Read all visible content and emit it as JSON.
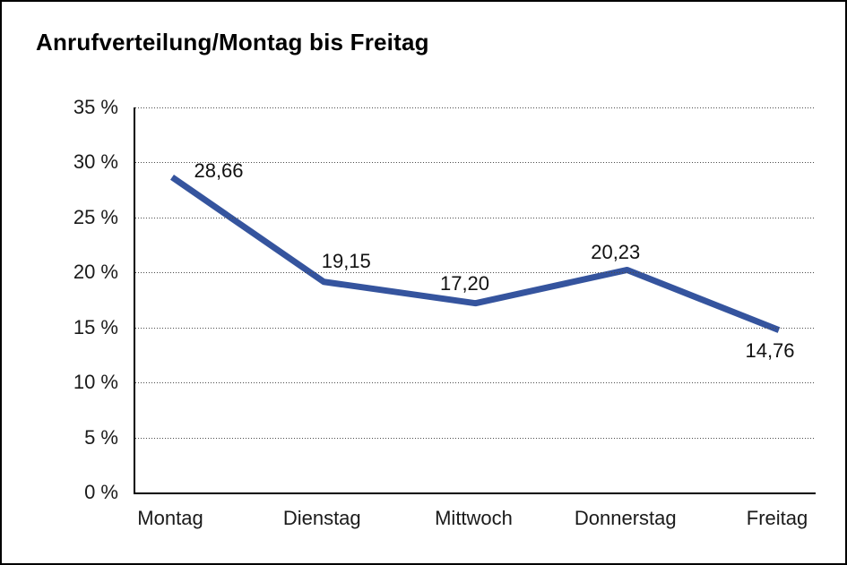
{
  "chart_data": {
    "type": "line",
    "title": "Anrufverteilung/Montag bis Freitag",
    "categories": [
      "Montag",
      "Dienstag",
      "Mittwoch",
      "Donnerstag",
      "Freitag"
    ],
    "series": [
      {
        "name": "Anrufverteilung",
        "values": [
          28.66,
          19.15,
          17.2,
          20.23,
          14.76
        ]
      }
    ],
    "data_labels": [
      "28,66",
      "19,15",
      "17,20",
      "20,23",
      "14,76"
    ],
    "xlabel": "",
    "ylabel": "",
    "ylim": [
      0,
      35
    ],
    "y_step": 5,
    "y_tick_labels": [
      "35 %",
      "30 %",
      "25 %",
      "20 %",
      "15 %",
      "10 %",
      "5 %",
      "0 %"
    ],
    "grid": "horizontal-dotted",
    "legend_position": "none",
    "line_color": "#35549E",
    "line_width": 7
  }
}
